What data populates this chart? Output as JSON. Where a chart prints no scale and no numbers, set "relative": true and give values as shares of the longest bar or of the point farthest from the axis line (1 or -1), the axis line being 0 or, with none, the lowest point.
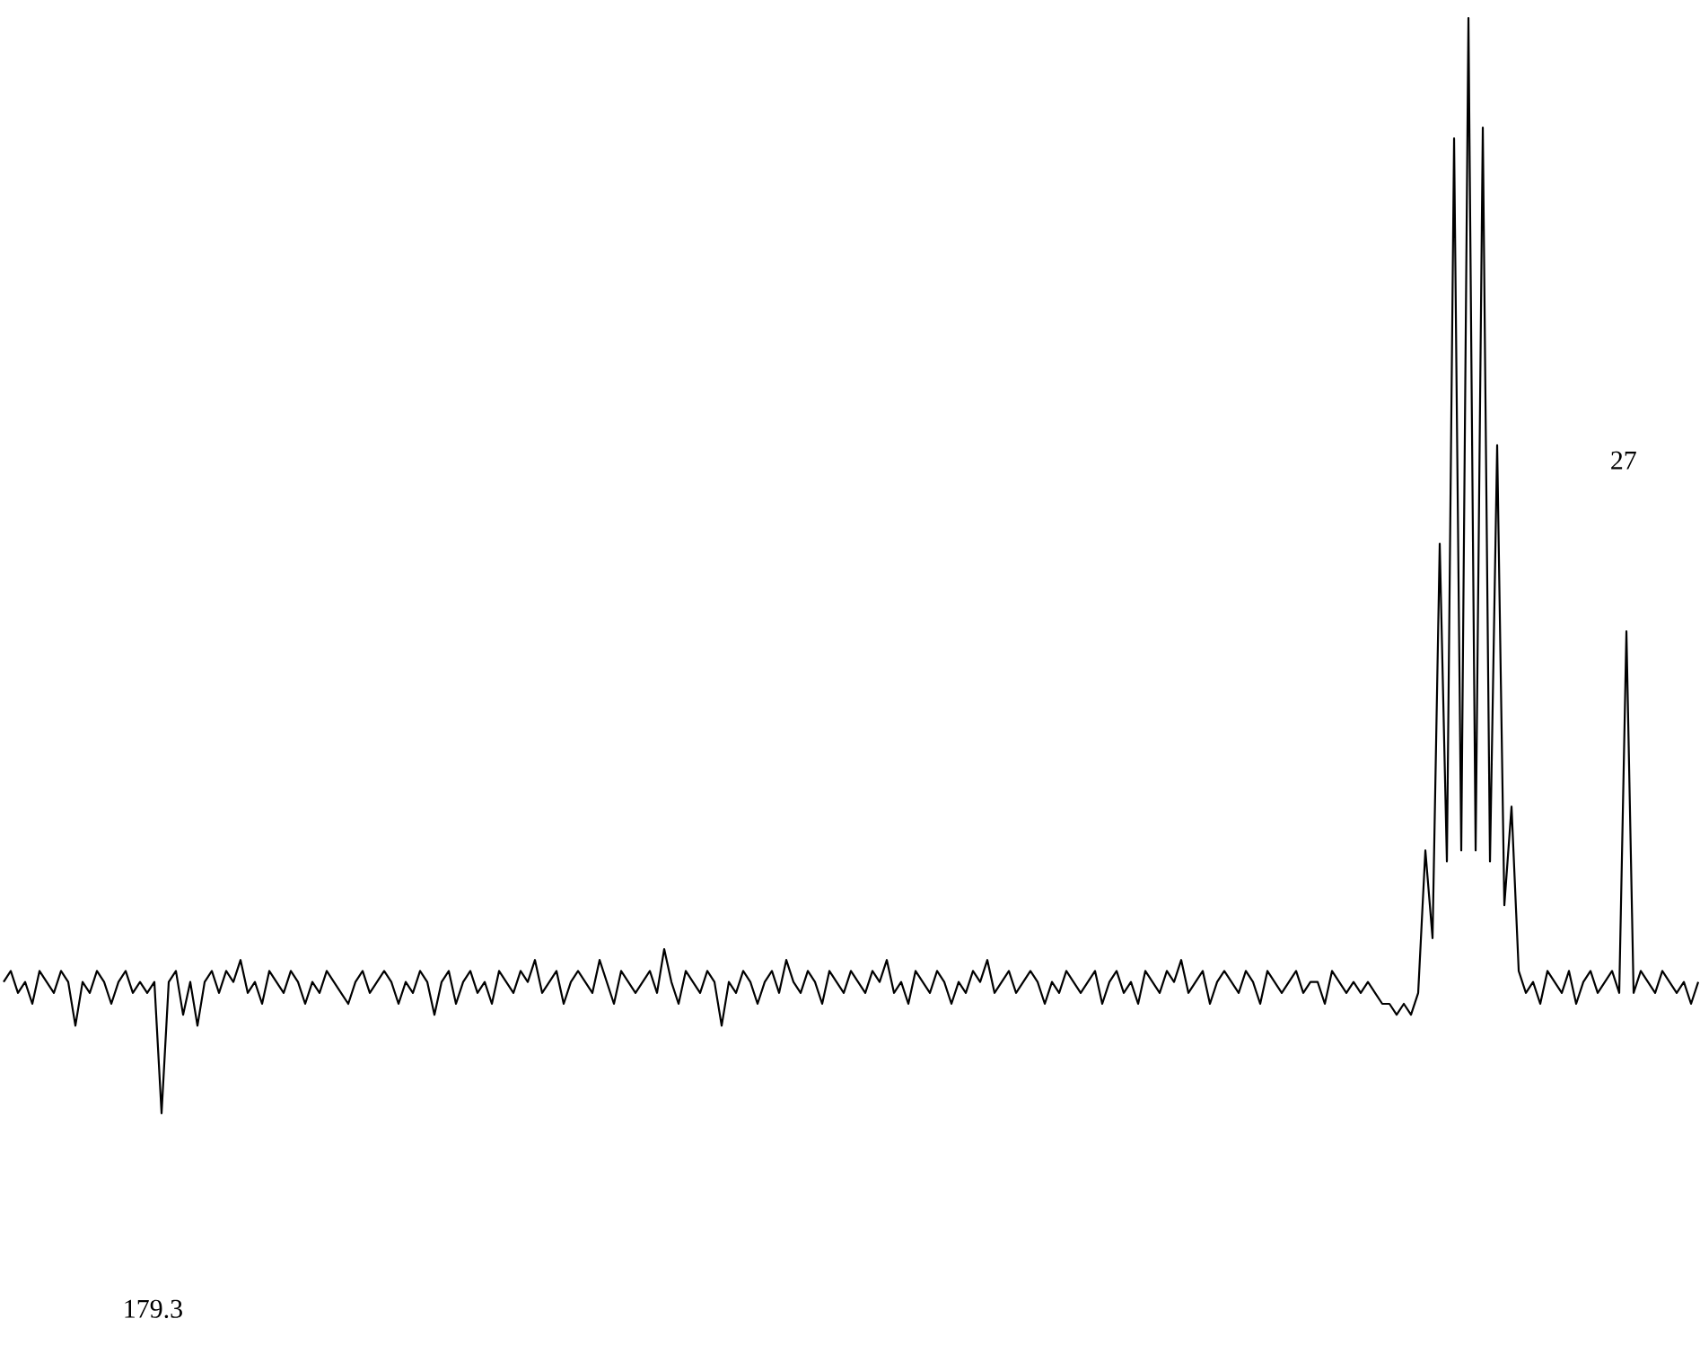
{
  "chart_data": {
    "type": "line",
    "relative": true,
    "color": "#000000",
    "annotations": [
      "179.3",
      "27"
    ],
    "categories": [
      null,
      null,
      null,
      null,
      null,
      null,
      null,
      null,
      null,
      null,
      null,
      null,
      null,
      null,
      null,
      null,
      null,
      null,
      null,
      null,
      null,
      null,
      null,
      null,
      null,
      null,
      null,
      null,
      null,
      null,
      null,
      null,
      null,
      null,
      null,
      null,
      null,
      null,
      null,
      null,
      null,
      null,
      null,
      null,
      null,
      null,
      null,
      null,
      null,
      null,
      null,
      null,
      null,
      null,
      null,
      null,
      null,
      null,
      null,
      null,
      null,
      null,
      null,
      null,
      null,
      null,
      null,
      null,
      null,
      null,
      null,
      null,
      null,
      null,
      null,
      null,
      null,
      null,
      null,
      null,
      null,
      null,
      null,
      null,
      null,
      null,
      null,
      null,
      null,
      null,
      null,
      null,
      null,
      null,
      null,
      null,
      null,
      null,
      null,
      null,
      null,
      null,
      null,
      null,
      null,
      null,
      null,
      null,
      null,
      null,
      null,
      null,
      null,
      null,
      null,
      null,
      null,
      null,
      null,
      null,
      null,
      null,
      null,
      null,
      null,
      null,
      null,
      null,
      null,
      null,
      null,
      null,
      null,
      null,
      null,
      null,
      null,
      null,
      null,
      null,
      null,
      null,
      null,
      null,
      null,
      null,
      null,
      null,
      null,
      null,
      null,
      null,
      null,
      null,
      null,
      null,
      null,
      null,
      null,
      null,
      null,
      null,
      null,
      null,
      null,
      null,
      null,
      null,
      null,
      null,
      null,
      null,
      null,
      null,
      null,
      null,
      null,
      null,
      null,
      null,
      null,
      null,
      null,
      null,
      null,
      null,
      null,
      null,
      null,
      null,
      null,
      null,
      null,
      null,
      null,
      null,
      null,
      null,
      null,
      null,
      null,
      null,
      null,
      null,
      null,
      null,
      null,
      null,
      null,
      null,
      null,
      null,
      null,
      null,
      null,
      null,
      null,
      null,
      null,
      null,
      null,
      null,
      null,
      null,
      null,
      null,
      null,
      null,
      null,
      null,
      null,
      null,
      null,
      null,
      null,
      null,
      null
    ],
    "values": [
      0.12,
      0.13,
      0.11,
      0.12,
      0.1,
      0.13,
      0.12,
      0.11,
      0.13,
      0.12,
      0.08,
      0.12,
      0.11,
      0.13,
      0.12,
      0.1,
      0.12,
      0.13,
      0.11,
      0.12,
      0.11,
      0.12,
      0.0,
      0.12,
      0.13,
      0.09,
      0.12,
      0.08,
      0.12,
      0.13,
      0.11,
      0.13,
      0.12,
      0.14,
      0.11,
      0.12,
      0.1,
      0.13,
      0.12,
      0.11,
      0.13,
      0.12,
      0.1,
      0.12,
      0.11,
      0.13,
      0.12,
      0.11,
      0.1,
      0.12,
      0.13,
      0.11,
      0.12,
      0.13,
      0.12,
      0.1,
      0.12,
      0.11,
      0.13,
      0.12,
      0.09,
      0.12,
      0.13,
      0.1,
      0.12,
      0.13,
      0.11,
      0.12,
      0.1,
      0.13,
      0.12,
      0.11,
      0.13,
      0.12,
      0.14,
      0.11,
      0.12,
      0.13,
      0.1,
      0.12,
      0.13,
      0.12,
      0.11,
      0.14,
      0.12,
      0.1,
      0.13,
      0.12,
      0.11,
      0.12,
      0.13,
      0.11,
      0.15,
      0.12,
      0.1,
      0.13,
      0.12,
      0.11,
      0.13,
      0.12,
      0.08,
      0.12,
      0.11,
      0.13,
      0.12,
      0.1,
      0.12,
      0.13,
      0.11,
      0.14,
      0.12,
      0.11,
      0.13,
      0.12,
      0.1,
      0.13,
      0.12,
      0.11,
      0.13,
      0.12,
      0.11,
      0.13,
      0.12,
      0.14,
      0.11,
      0.12,
      0.1,
      0.13,
      0.12,
      0.11,
      0.13,
      0.12,
      0.1,
      0.12,
      0.11,
      0.13,
      0.12,
      0.14,
      0.11,
      0.12,
      0.13,
      0.11,
      0.12,
      0.13,
      0.12,
      0.1,
      0.12,
      0.11,
      0.13,
      0.12,
      0.11,
      0.12,
      0.13,
      0.1,
      0.12,
      0.13,
      0.11,
      0.12,
      0.1,
      0.13,
      0.12,
      0.11,
      0.13,
      0.12,
      0.14,
      0.11,
      0.12,
      0.13,
      0.1,
      0.12,
      0.13,
      0.12,
      0.11,
      0.13,
      0.12,
      0.1,
      0.13,
      0.12,
      0.11,
      0.12,
      0.13,
      0.11,
      0.12,
      0.12,
      0.1,
      0.13,
      0.12,
      0.11,
      0.12,
      0.11,
      0.12,
      0.11,
      0.1,
      0.1,
      0.09,
      0.1,
      0.09,
      0.11,
      0.24,
      0.16,
      0.52,
      0.23,
      0.89,
      0.24,
      1.0,
      0.24,
      0.9,
      0.23,
      0.61,
      0.19,
      0.28,
      0.13,
      0.11,
      0.12,
      0.1,
      0.13,
      0.12,
      0.11,
      0.13,
      0.1,
      0.12,
      0.13,
      0.11,
      0.12,
      0.13,
      0.11,
      0.44,
      0.11,
      0.13,
      0.12,
      0.11,
      0.13,
      0.12,
      0.11,
      0.12,
      0.1,
      0.12
    ]
  }
}
